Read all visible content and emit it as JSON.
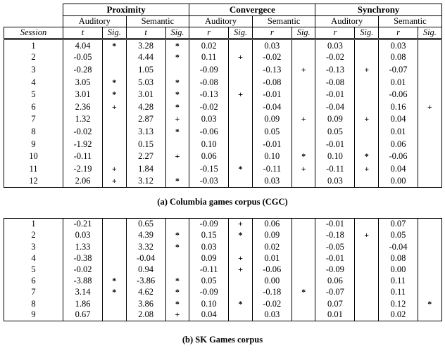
{
  "figure": {
    "header": {
      "groups": [
        "Proximity",
        "Convergece",
        "Synchrony"
      ],
      "subgroups": [
        "Auditory",
        "Semantic",
        "Auditory",
        "Semantic",
        "Auditory",
        "Semantic"
      ],
      "columns": [
        "Session",
        "t",
        "Sig.",
        "t",
        "Sig.",
        "r",
        "Sig.",
        "r",
        "Sig.",
        "r",
        "Sig.",
        "r",
        "Sig."
      ]
    },
    "cgc": {
      "caption": "(a) Columbia games corpus (CGC)",
      "rows": [
        [
          "1",
          "4.04",
          "*",
          "3.28",
          "*",
          "0.02",
          "",
          "0.03",
          "",
          "0.03",
          "",
          "0.03",
          ""
        ],
        [
          "2",
          "-0.05",
          "",
          "4.44",
          "*",
          "0.11",
          "+",
          "-0.02",
          "",
          "-0.02",
          "",
          "0.08",
          ""
        ],
        [
          "3",
          "-0.28",
          "",
          "1.05",
          "",
          "-0.09",
          "",
          "-0.13",
          "+",
          "-0.13",
          "+",
          "-0.07",
          ""
        ],
        [
          "4",
          "3.05",
          "*",
          "5.03",
          "*",
          "-0.08",
          "",
          "-0.08",
          "",
          "-0.08",
          "",
          "0.01",
          ""
        ],
        [
          "5",
          "3.01",
          "*",
          "3.01",
          "*",
          "-0.13",
          "+",
          "-0.01",
          "",
          "-0.01",
          "",
          "-0.06",
          ""
        ],
        [
          "6",
          "2.36",
          "+",
          "4.28",
          "*",
          "-0.02",
          "",
          "-0.04",
          "",
          "-0.04",
          "",
          "0.16",
          "+"
        ],
        [
          "7",
          "1.32",
          "",
          "2.87",
          "+",
          "0.03",
          "",
          "0.09",
          "+",
          "0.09",
          "+",
          "0.04",
          ""
        ],
        [
          "8",
          "-0.02",
          "",
          "3.13",
          "*",
          "-0.06",
          "",
          "0.05",
          "",
          "0.05",
          "",
          "0.01",
          ""
        ],
        [
          "9",
          "-1.92",
          "",
          "0.15",
          "",
          "0.10",
          "",
          "-0.01",
          "",
          "-0.01",
          "",
          "0.06",
          ""
        ],
        [
          "10",
          "-0.11",
          "",
          "2.27",
          "+",
          "0.06",
          "",
          "0.10",
          "*",
          "0.10",
          "*",
          "-0.06",
          ""
        ],
        [
          "11",
          "-2.19",
          "+",
          "1.84",
          "",
          "-0.15",
          "*",
          "-0.11",
          "+",
          "-0.11",
          "+",
          "0.04",
          ""
        ],
        [
          "12",
          "2.06",
          "+",
          "3.12",
          "*",
          "-0.03",
          "",
          "0.03",
          "",
          "0.03",
          "",
          "0.00",
          ""
        ]
      ]
    },
    "sk": {
      "caption": "(b) SK Games corpus",
      "rows": [
        [
          "1",
          "-0.21",
          "",
          "0.65",
          "",
          "-0.09",
          "+",
          "0.06",
          "",
          "-0.01",
          "",
          "0.07",
          ""
        ],
        [
          "2",
          "0.03",
          "",
          "4.39",
          "*",
          "0.15",
          "*",
          "0.09",
          "",
          "-0.18",
          "+",
          "0.05",
          ""
        ],
        [
          "3",
          "1.33",
          "",
          "3.32",
          "*",
          "0.03",
          "",
          "0.02",
          "",
          "-0.05",
          "",
          "-0.04",
          ""
        ],
        [
          "4",
          "-0.38",
          "",
          "-0.04",
          "",
          "0.09",
          "+",
          "0.01",
          "",
          "-0.01",
          "",
          "0.08",
          ""
        ],
        [
          "5",
          "-0.02",
          "",
          "0.94",
          "",
          "-0.11",
          "+",
          "-0.06",
          "",
          "-0.09",
          "",
          "0.00",
          ""
        ],
        [
          "6",
          "-3.88",
          "*",
          "-3.86",
          "*",
          "0.05",
          "",
          "0.00",
          "",
          "0.06",
          "",
          "0.11",
          ""
        ],
        [
          "7",
          "3.14",
          "*",
          "4.62",
          "*",
          "-0.09",
          "",
          "-0.18",
          "*",
          "-0.07",
          "",
          "0.11",
          ""
        ],
        [
          "8",
          "1.86",
          "",
          "3.86",
          "*",
          "0.10",
          "*",
          "-0.02",
          "",
          "0.07",
          "",
          "0.12",
          "*"
        ],
        [
          "9",
          "0.67",
          "",
          "2.08",
          "+",
          "0.04",
          "",
          "0.03",
          "",
          "0.01",
          "",
          "0.02",
          ""
        ]
      ]
    }
  },
  "colors": {
    "text": "#000000",
    "border": "#000000",
    "background": "#ffffff"
  }
}
